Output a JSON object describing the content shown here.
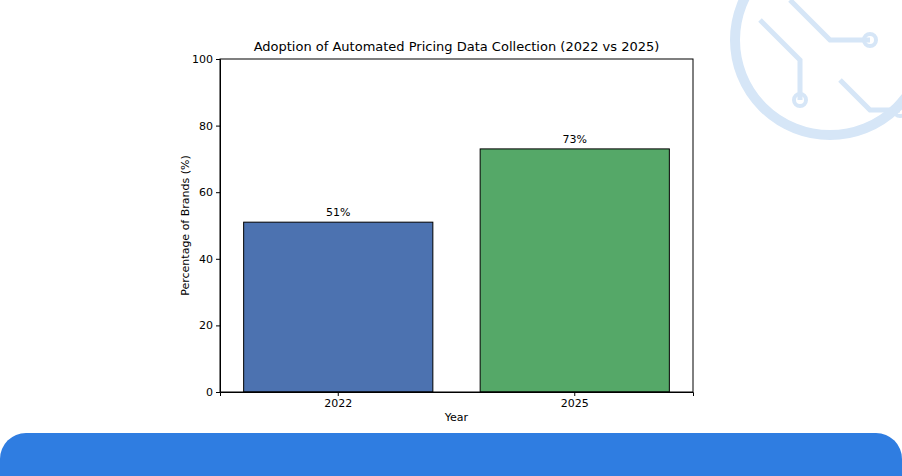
{
  "chart_data": {
    "type": "bar",
    "title": "Adoption of Automated Pricing Data Collection (2022 vs 2025)",
    "x_label": "Year",
    "y_label": "Percentage of Brands (%)",
    "categories": [
      "2022",
      "2025"
    ],
    "values": [
      51,
      73
    ],
    "value_labels": [
      "51%",
      "73%"
    ],
    "colors": [
      "#4c72b0",
      "#55a868"
    ],
    "data_labels": true,
    "grid": false,
    "ylim": [
      0,
      100
    ],
    "yticks": [
      0,
      20,
      40,
      60,
      80,
      100
    ]
  }
}
